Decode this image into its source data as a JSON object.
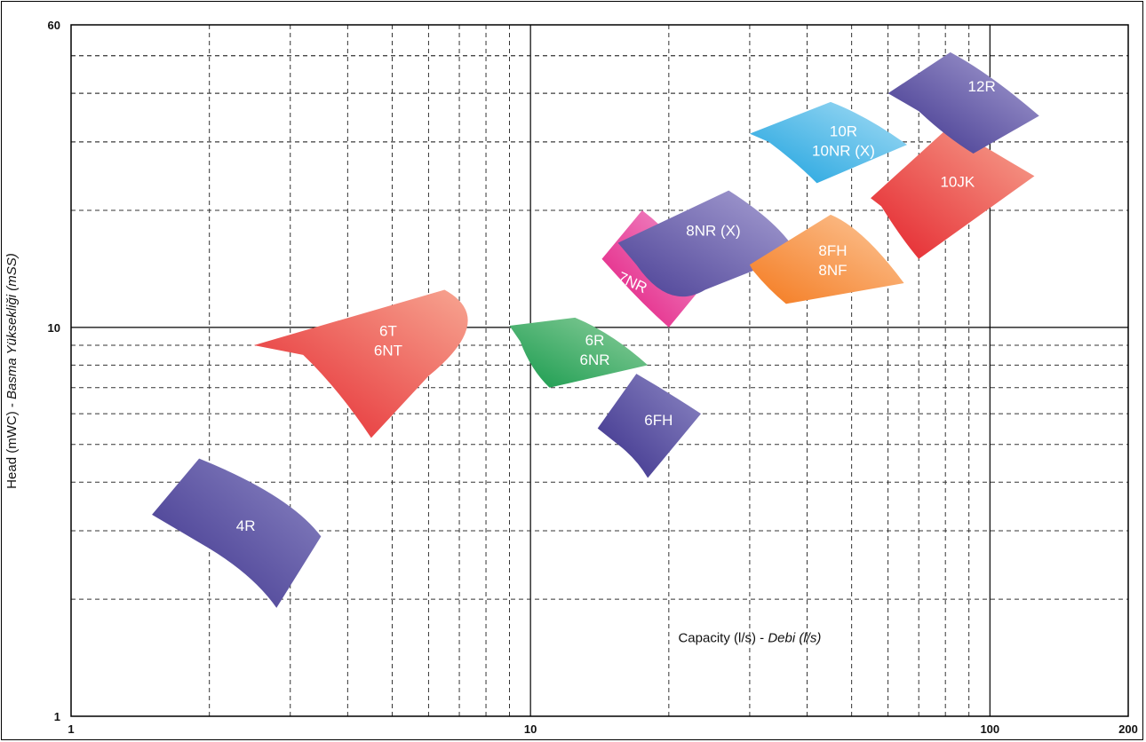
{
  "chart_data": {
    "type": "area",
    "title": "",
    "xlabel": {
      "main": "Capacity (l/s) - ",
      "italic": "Debi (l/s)"
    },
    "ylabel": {
      "main": "Head (mWC) - ",
      "italic": "Basma Yüksekliği (mSS)"
    },
    "x_scale": "log",
    "y_scale": "log",
    "xlim": [
      1,
      200
    ],
    "ylim": [
      1,
      60
    ],
    "x_tick_labels": [
      "1",
      "10",
      "100",
      "200"
    ],
    "y_tick_labels": [
      "1",
      "10",
      "60"
    ],
    "grid": true,
    "regions": [
      {
        "name": "4R",
        "lines": [
          "4R"
        ],
        "color_light": "#8d88c4",
        "color_dark": "#3a2f8a",
        "points": [
          [
            1.5,
            3.3
          ],
          [
            1.9,
            4.6
          ],
          [
            3.0,
            3.7
          ],
          [
            3.5,
            2.9
          ],
          [
            2.8,
            1.9
          ],
          [
            2.5,
            2.3
          ],
          [
            2.0,
            2.7
          ]
        ]
      },
      {
        "name": "6T 6NT",
        "lines": [
          "6T",
          "6NT"
        ],
        "color_light": "#f7a591",
        "color_dark": "#e4222b",
        "points": [
          [
            2.5,
            9.0
          ],
          [
            6.5,
            12.5
          ],
          [
            8.5,
            10.5
          ],
          [
            6.0,
            7.5
          ],
          [
            4.5,
            5.2
          ],
          [
            3.8,
            7.0
          ],
          [
            3.2,
            8.5
          ]
        ]
      },
      {
        "name": "6R 6NR",
        "lines": [
          "6R",
          "6NR"
        ],
        "color_light": "#8fcf9e",
        "color_dark": "#169a4c",
        "points": [
          [
            9.0,
            10.1
          ],
          [
            12.5,
            10.6
          ],
          [
            15.0,
            9.7
          ],
          [
            18.0,
            8.0
          ],
          [
            11.0,
            7.0
          ],
          [
            10.0,
            7.8
          ],
          [
            9.5,
            9.2
          ]
        ]
      },
      {
        "name": "6FH",
        "lines": [
          "6FH"
        ],
        "color_light": "#8d88c4",
        "color_dark": "#3a2f8a",
        "points": [
          [
            14.0,
            5.5
          ],
          [
            17.0,
            7.6
          ],
          [
            20.0,
            6.8
          ],
          [
            23.5,
            6.0
          ],
          [
            18.0,
            4.1
          ],
          [
            17.0,
            4.6
          ],
          [
            15.5,
            5.0
          ]
        ]
      },
      {
        "name": "7NR",
        "lines": [
          "7NR"
        ],
        "color_light": "#f29ad0",
        "color_dark": "#e2137a",
        "points": [
          [
            14.3,
            15.0
          ],
          [
            17.5,
            20.0
          ],
          [
            21.0,
            17.0
          ],
          [
            24.0,
            13.0
          ],
          [
            20.0,
            10.0
          ],
          [
            17.5,
            11.5
          ],
          [
            15.5,
            13.5
          ]
        ]
      },
      {
        "name": "8NR (X)",
        "lines": [
          "8NR (X)"
        ],
        "color_light": "#a9a2d4",
        "color_dark": "#4a3f95",
        "points": [
          [
            15.5,
            16.5
          ],
          [
            27.0,
            22.5
          ],
          [
            35.0,
            18.5
          ],
          [
            38.0,
            15.5
          ],
          [
            24.0,
            12.5
          ],
          [
            20.0,
            11.0
          ],
          [
            17.0,
            14.5
          ]
        ]
      },
      {
        "name": "8FH 8NF",
        "lines": [
          "8FH",
          "8NF"
        ],
        "color_light": "#fcc79a",
        "color_dark": "#f47a1f",
        "points": [
          [
            30.0,
            14.5
          ],
          [
            45.0,
            19.5
          ],
          [
            53.0,
            18.0
          ],
          [
            65.0,
            13.0
          ],
          [
            36.0,
            11.5
          ],
          [
            33.0,
            12.5
          ],
          [
            30.5,
            14.0
          ]
        ]
      },
      {
        "name": "10R 10NR (X)",
        "lines": [
          "10R",
          "10NR (X)"
        ],
        "color_light": "#a6ddf5",
        "color_dark": "#1aa1de",
        "points": [
          [
            30.0,
            31.5
          ],
          [
            45.0,
            38.0
          ],
          [
            54.0,
            35.0
          ],
          [
            66.0,
            29.5
          ],
          [
            42.0,
            23.5
          ],
          [
            38.0,
            26.5
          ],
          [
            33.0,
            30.0
          ]
        ]
      },
      {
        "name": "10JK",
        "lines": [
          "10JK"
        ],
        "color_light": "#f7a591",
        "color_dark": "#e4222b",
        "points": [
          [
            55.0,
            21.5
          ],
          [
            82.0,
            33.0
          ],
          [
            98.0,
            29.0
          ],
          [
            125.0,
            24.5
          ],
          [
            70.0,
            15.0
          ],
          [
            64.0,
            17.0
          ],
          [
            58.0,
            20.5
          ]
        ]
      },
      {
        "name": "12R",
        "lines": [
          "12R"
        ],
        "color_light": "#a9a2d4",
        "color_dark": "#3a2f8a",
        "points": [
          [
            60.0,
            40.0
          ],
          [
            82.0,
            51.0
          ],
          [
            100.0,
            45.0
          ],
          [
            128.0,
            35.0
          ],
          [
            92.0,
            28.0
          ],
          [
            80.0,
            31.0
          ],
          [
            70.0,
            36.0
          ]
        ]
      }
    ],
    "label_positions": {
      "4R": [
        2.4,
        3.0
      ],
      "6T 6NT": [
        4.9,
        9.5
      ],
      "6R 6NR": [
        13.8,
        9.0
      ],
      "6FH": [
        19.0,
        5.6
      ],
      "7NR": [
        16.5,
        12.7
      ],
      "8NR (X)": [
        25.0,
        17.2
      ],
      "8FH 8NF": [
        45.5,
        15.3
      ],
      "10R 10NR (X)": [
        48.0,
        31.0
      ],
      "10JK": [
        85.0,
        23.0
      ],
      "12R": [
        96.0,
        40.5
      ]
    },
    "xlabel_position": [
      30.0,
      1.55
    ]
  }
}
